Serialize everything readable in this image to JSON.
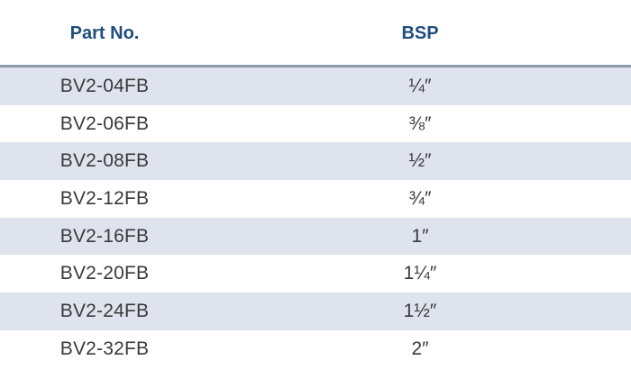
{
  "table": {
    "headers": {
      "part_no": "Part No.",
      "bsp": "BSP"
    },
    "rows": [
      {
        "part_no": "BV2-04FB",
        "bsp": "¼″"
      },
      {
        "part_no": "BV2-06FB",
        "bsp": "⅜″"
      },
      {
        "part_no": "BV2-08FB",
        "bsp": "½″"
      },
      {
        "part_no": "BV2-12FB",
        "bsp": "¾″"
      },
      {
        "part_no": "BV2-16FB",
        "bsp": "1″"
      },
      {
        "part_no": "BV2-20FB",
        "bsp": "1¼″"
      },
      {
        "part_no": "BV2-24FB",
        "bsp": "1½″"
      },
      {
        "part_no": "BV2-32FB",
        "bsp": "2″"
      }
    ]
  },
  "colors": {
    "header_text": "#1f4e7d",
    "row_shade": "#dfe3ee",
    "rule": "#8c98ab",
    "cell_text": "#3a3a3a"
  }
}
